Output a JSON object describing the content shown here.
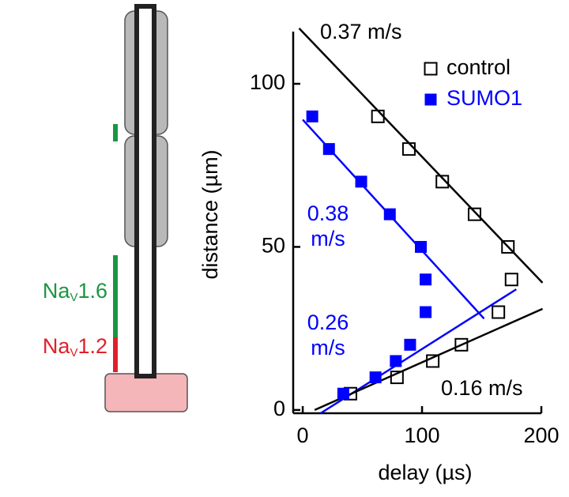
{
  "diagram": {
    "labels": [
      {
        "base": "Na",
        "sub": "V",
        "suffix": "1.6",
        "color": "#1a9641"
      },
      {
        "base": "Na",
        "sub": "V",
        "suffix": "1.2",
        "color": "#e0202a"
      }
    ]
  },
  "chart_data": {
    "type": "scatter",
    "x_label": "delay (µs)",
    "y_label": "distance (µm)",
    "xlim": [
      -8,
      200
    ],
    "ylim": [
      -1,
      116
    ],
    "xticks": [
      0,
      100,
      200
    ],
    "yticks": [
      0,
      50,
      100
    ],
    "series": [
      {
        "name": "control",
        "color": "#000000",
        "marker": "open-square",
        "x": [
          40,
          79,
          109,
          133,
          164,
          175,
          172,
          144,
          117,
          89,
          63
        ],
        "values": [
          5,
          10,
          15,
          20,
          30,
          40,
          50,
          60,
          70,
          80,
          90
        ]
      },
      {
        "name": "SUMO1",
        "color": "#0000ff",
        "marker": "filled-square",
        "x": [
          8,
          22,
          49,
          73,
          99,
          103,
          103,
          90,
          78,
          61,
          34
        ],
        "values": [
          90,
          80,
          70,
          60,
          50,
          40,
          30,
          20,
          15,
          10,
          5
        ]
      }
    ],
    "fits": [
      {
        "label": "0.37 m/s",
        "color": "#000000",
        "x": [
          -3,
          201
        ],
        "values": [
          117,
          39
        ]
      },
      {
        "label": [
          "0.38",
          "m/s"
        ],
        "color": "#0000ff",
        "x": [
          0,
          152
        ],
        "values": [
          89,
          28
        ]
      },
      {
        "label": [
          "0.26",
          "m/s"
        ],
        "color": "#0000ff",
        "x": [
          15,
          179
        ],
        "values": [
          -1,
          37
        ]
      },
      {
        "label": "0.16 m/s",
        "color": "#000000",
        "x": [
          10,
          201
        ],
        "values": [
          0,
          31
        ]
      }
    ]
  }
}
